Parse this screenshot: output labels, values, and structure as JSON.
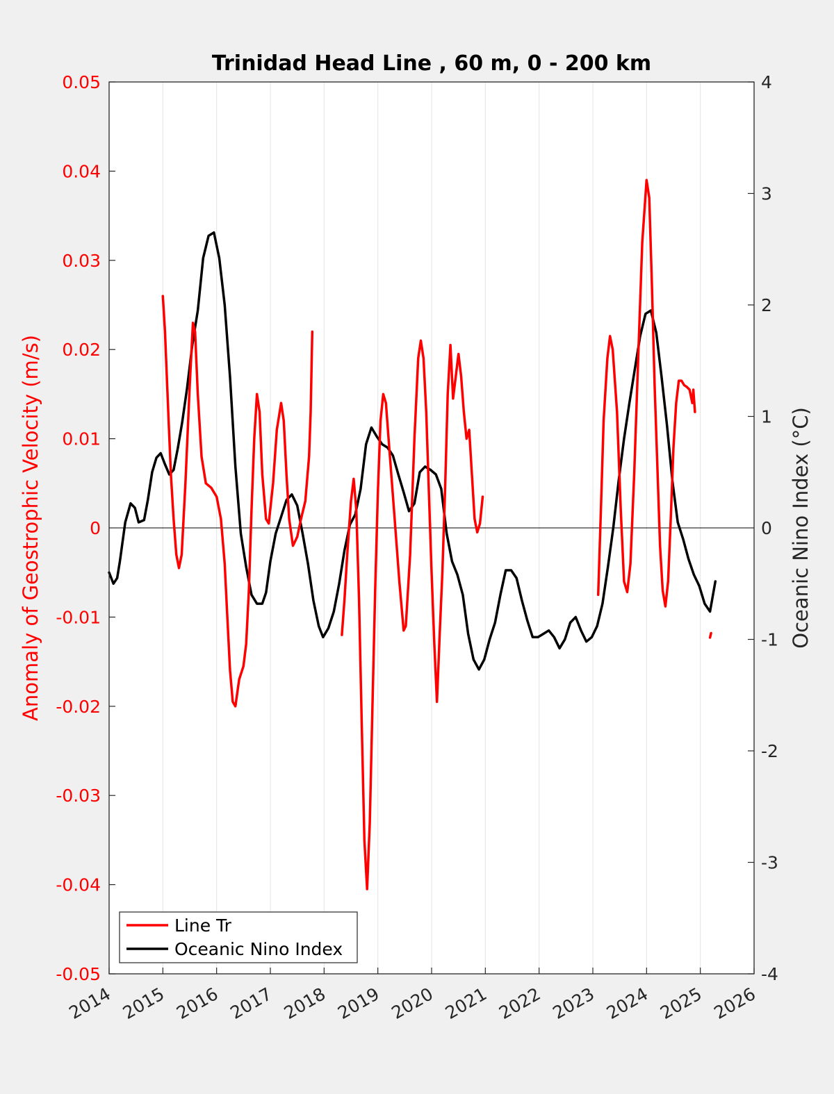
{
  "chart_data": {
    "type": "line",
    "title": "Trinidad Head Line , 60 m, 0 - 200 km",
    "ylabel_left": "Anomaly of Geostrophic Velocity (m/s)",
    "ylabel_right": "Oceanic Nino Index (°C)",
    "xlabel": "",
    "xlim": [
      2014,
      2026
    ],
    "ylim_left": [
      -0.05,
      0.05
    ],
    "ylim_right": [
      -4,
      4
    ],
    "x_ticks": [
      2014,
      2015,
      2016,
      2017,
      2018,
      2019,
      2020,
      2021,
      2022,
      2023,
      2024,
      2025,
      2026
    ],
    "y_ticks_left": [
      "0.05",
      "0.04",
      "0.03",
      "0.02",
      "0.01",
      "0",
      "-0.01",
      "-0.02",
      "-0.03",
      "-0.04",
      "-0.05"
    ],
    "y_ticks_right": [
      "4",
      "3",
      "2",
      "1",
      "0",
      "-1",
      "-2",
      "-3",
      "-4"
    ],
    "grid": "vertical",
    "legend_position": "bottom-left",
    "colors": {
      "line_tr": "#ff0000",
      "oni": "#000000",
      "left_axis": "#ff0000",
      "right_axis": "#262626"
    },
    "series": [
      {
        "name": "Line Tr",
        "axis": "left",
        "segments": [
          [
            [
              2015.0,
              0.026
            ],
            [
              2015.04,
              0.022
            ],
            [
              2015.1,
              0.013
            ],
            [
              2015.15,
              0.006
            ],
            [
              2015.2,
              0.001
            ],
            [
              2015.25,
              -0.003
            ],
            [
              2015.3,
              -0.0045
            ],
            [
              2015.35,
              -0.003
            ],
            [
              2015.42,
              0.005
            ],
            [
              2015.5,
              0.016
            ],
            [
              2015.56,
              0.023
            ],
            [
              2015.6,
              0.022
            ],
            [
              2015.65,
              0.015
            ],
            [
              2015.72,
              0.008
            ],
            [
              2015.8,
              0.005
            ],
            [
              2015.9,
              0.0045
            ],
            [
              2016.0,
              0.0035
            ],
            [
              2016.08,
              0.001
            ],
            [
              2016.15,
              -0.004
            ],
            [
              2016.2,
              -0.01
            ],
            [
              2016.25,
              -0.016
            ],
            [
              2016.3,
              -0.0195
            ],
            [
              2016.35,
              -0.02
            ],
            [
              2016.42,
              -0.017
            ],
            [
              2016.5,
              -0.0155
            ],
            [
              2016.55,
              -0.013
            ],
            [
              2016.6,
              -0.007
            ],
            [
              2016.65,
              0.002
            ],
            [
              2016.7,
              0.01
            ],
            [
              2016.75,
              0.015
            ],
            [
              2016.8,
              0.013
            ],
            [
              2016.85,
              0.006
            ],
            [
              2016.92,
              0.001
            ],
            [
              2016.97,
              0.0005
            ],
            [
              2017.05,
              0.005
            ],
            [
              2017.12,
              0.011
            ],
            [
              2017.2,
              0.014
            ],
            [
              2017.25,
              0.012
            ],
            [
              2017.3,
              0.006
            ],
            [
              2017.35,
              0.001
            ],
            [
              2017.42,
              -0.002
            ],
            [
              2017.5,
              -0.001
            ],
            [
              2017.57,
              0.001
            ],
            [
              2017.65,
              0.003
            ],
            [
              2017.72,
              0.008
            ],
            [
              2017.75,
              0.013
            ],
            [
              2017.78,
              0.022
            ]
          ],
          [
            [
              2018.33,
              -0.012
            ],
            [
              2018.38,
              -0.008
            ],
            [
              2018.43,
              -0.003
            ],
            [
              2018.5,
              0.003
            ],
            [
              2018.55,
              0.0055
            ],
            [
              2018.6,
              0.002
            ],
            [
              2018.65,
              -0.008
            ],
            [
              2018.7,
              -0.022
            ],
            [
              2018.75,
              -0.035
            ],
            [
              2018.8,
              -0.0405
            ],
            [
              2018.85,
              -0.033
            ],
            [
              2018.9,
              -0.02
            ],
            [
              2018.95,
              -0.007
            ],
            [
              2019.0,
              0.004
            ],
            [
              2019.05,
              0.012
            ],
            [
              2019.1,
              0.015
            ],
            [
              2019.15,
              0.014
            ],
            [
              2019.2,
              0.01
            ],
            [
              2019.3,
              0.002
            ],
            [
              2019.4,
              -0.006
            ],
            [
              2019.48,
              -0.0115
            ],
            [
              2019.52,
              -0.011
            ],
            [
              2019.6,
              -0.003
            ],
            [
              2019.68,
              0.01
            ],
            [
              2019.75,
              0.019
            ],
            [
              2019.8,
              0.021
            ],
            [
              2019.85,
              0.019
            ],
            [
              2019.9,
              0.013
            ],
            [
              2019.95,
              0.004
            ],
            [
              2020.0,
              -0.005
            ],
            [
              2020.05,
              -0.013
            ],
            [
              2020.1,
              -0.0195
            ],
            [
              2020.15,
              -0.012
            ],
            [
              2020.2,
              -0.005
            ],
            [
              2020.25,
              0.004
            ],
            [
              2020.3,
              0.015
            ],
            [
              2020.35,
              0.0205
            ],
            [
              2020.4,
              0.0145
            ],
            [
              2020.45,
              0.017
            ],
            [
              2020.5,
              0.0195
            ],
            [
              2020.55,
              0.017
            ],
            [
              2020.6,
              0.013
            ],
            [
              2020.65,
              0.01
            ],
            [
              2020.7,
              0.011
            ],
            [
              2020.75,
              0.006
            ],
            [
              2020.8,
              0.001
            ],
            [
              2020.85,
              -0.0005
            ],
            [
              2020.9,
              0.0005
            ],
            [
              2020.95,
              0.0035
            ]
          ],
          [
            [
              2023.1,
              -0.0075
            ],
            [
              2023.15,
              0.002
            ],
            [
              2023.2,
              0.012
            ],
            [
              2023.27,
              0.019
            ],
            [
              2023.32,
              0.0215
            ],
            [
              2023.37,
              0.02
            ],
            [
              2023.45,
              0.013
            ],
            [
              2023.52,
              0.002
            ],
            [
              2023.58,
              -0.006
            ],
            [
              2023.64,
              -0.0072
            ],
            [
              2023.7,
              -0.004
            ],
            [
              2023.77,
              0.006
            ],
            [
              2023.85,
              0.02
            ],
            [
              2023.92,
              0.032
            ],
            [
              2024.0,
              0.039
            ],
            [
              2024.05,
              0.037
            ],
            [
              2024.1,
              0.027
            ],
            [
              2024.15,
              0.016
            ],
            [
              2024.2,
              0.007
            ],
            [
              2024.25,
              -0.002
            ],
            [
              2024.3,
              -0.007
            ],
            [
              2024.35,
              -0.0088
            ],
            [
              2024.4,
              -0.006
            ],
            [
              2024.45,
              0.001
            ],
            [
              2024.5,
              0.009
            ],
            [
              2024.55,
              0.014
            ],
            [
              2024.6,
              0.0165
            ],
            [
              2024.65,
              0.0165
            ],
            [
              2024.7,
              0.016
            ],
            [
              2024.75,
              0.0158
            ],
            [
              2024.8,
              0.0155
            ],
            [
              2024.85,
              0.014
            ],
            [
              2024.87,
              0.0155
            ],
            [
              2024.9,
              0.013
            ]
          ],
          [
            [
              2025.18,
              -0.0123
            ],
            [
              2025.2,
              -0.0118
            ]
          ]
        ]
      },
      {
        "name": "Oceanic Nino Index",
        "axis": "right",
        "points": [
          [
            2014.0,
            -0.4
          ],
          [
            2014.08,
            -0.5
          ],
          [
            2014.15,
            -0.45
          ],
          [
            2014.2,
            -0.3
          ],
          [
            2014.3,
            0.05
          ],
          [
            2014.4,
            0.22
          ],
          [
            2014.48,
            0.18
          ],
          [
            2014.55,
            0.05
          ],
          [
            2014.65,
            0.07
          ],
          [
            2014.72,
            0.25
          ],
          [
            2014.8,
            0.5
          ],
          [
            2014.88,
            0.63
          ],
          [
            2014.96,
            0.67
          ],
          [
            2015.04,
            0.57
          ],
          [
            2015.12,
            0.48
          ],
          [
            2015.2,
            0.52
          ],
          [
            2015.28,
            0.72
          ],
          [
            2015.36,
            0.95
          ],
          [
            2015.45,
            1.25
          ],
          [
            2015.55,
            1.65
          ],
          [
            2015.65,
            1.95
          ],
          [
            2015.75,
            2.42
          ],
          [
            2015.85,
            2.62
          ],
          [
            2015.95,
            2.65
          ],
          [
            2016.05,
            2.42
          ],
          [
            2016.15,
            2.0
          ],
          [
            2016.25,
            1.35
          ],
          [
            2016.35,
            0.55
          ],
          [
            2016.45,
            -0.05
          ],
          [
            2016.55,
            -0.35
          ],
          [
            2016.65,
            -0.6
          ],
          [
            2016.75,
            -0.68
          ],
          [
            2016.85,
            -0.68
          ],
          [
            2016.92,
            -0.58
          ],
          [
            2017.0,
            -0.3
          ],
          [
            2017.1,
            -0.05
          ],
          [
            2017.2,
            0.1
          ],
          [
            2017.3,
            0.25
          ],
          [
            2017.4,
            0.3
          ],
          [
            2017.5,
            0.2
          ],
          [
            2017.6,
            -0.05
          ],
          [
            2017.7,
            -0.32
          ],
          [
            2017.8,
            -0.65
          ],
          [
            2017.9,
            -0.88
          ],
          [
            2017.98,
            -0.98
          ],
          [
            2018.08,
            -0.9
          ],
          [
            2018.18,
            -0.75
          ],
          [
            2018.28,
            -0.5
          ],
          [
            2018.38,
            -0.2
          ],
          [
            2018.48,
            0.03
          ],
          [
            2018.58,
            0.12
          ],
          [
            2018.68,
            0.35
          ],
          [
            2018.78,
            0.75
          ],
          [
            2018.88,
            0.9
          ],
          [
            2018.98,
            0.82
          ],
          [
            2019.08,
            0.75
          ],
          [
            2019.18,
            0.72
          ],
          [
            2019.28,
            0.65
          ],
          [
            2019.38,
            0.48
          ],
          [
            2019.48,
            0.32
          ],
          [
            2019.58,
            0.15
          ],
          [
            2019.68,
            0.22
          ],
          [
            2019.78,
            0.5
          ],
          [
            2019.88,
            0.55
          ],
          [
            2019.98,
            0.52
          ],
          [
            2020.08,
            0.48
          ],
          [
            2020.18,
            0.35
          ],
          [
            2020.28,
            -0.05
          ],
          [
            2020.38,
            -0.3
          ],
          [
            2020.48,
            -0.42
          ],
          [
            2020.58,
            -0.6
          ],
          [
            2020.68,
            -0.95
          ],
          [
            2020.78,
            -1.18
          ],
          [
            2020.88,
            -1.27
          ],
          [
            2020.98,
            -1.18
          ],
          [
            2021.08,
            -1.0
          ],
          [
            2021.18,
            -0.85
          ],
          [
            2021.28,
            -0.6
          ],
          [
            2021.38,
            -0.38
          ],
          [
            2021.48,
            -0.38
          ],
          [
            2021.58,
            -0.45
          ],
          [
            2021.68,
            -0.65
          ],
          [
            2021.78,
            -0.83
          ],
          [
            2021.88,
            -0.98
          ],
          [
            2021.98,
            -0.98
          ],
          [
            2022.08,
            -0.95
          ],
          [
            2022.18,
            -0.92
          ],
          [
            2022.28,
            -0.98
          ],
          [
            2022.38,
            -1.08
          ],
          [
            2022.48,
            -1.0
          ],
          [
            2022.58,
            -0.85
          ],
          [
            2022.68,
            -0.8
          ],
          [
            2022.78,
            -0.92
          ],
          [
            2022.88,
            -1.02
          ],
          [
            2022.98,
            -0.98
          ],
          [
            2023.08,
            -0.88
          ],
          [
            2023.18,
            -0.68
          ],
          [
            2023.28,
            -0.35
          ],
          [
            2023.38,
            0.0
          ],
          [
            2023.48,
            0.42
          ],
          [
            2023.58,
            0.8
          ],
          [
            2023.68,
            1.12
          ],
          [
            2023.78,
            1.42
          ],
          [
            2023.88,
            1.72
          ],
          [
            2023.98,
            1.92
          ],
          [
            2024.08,
            1.95
          ],
          [
            2024.18,
            1.75
          ],
          [
            2024.28,
            1.35
          ],
          [
            2024.38,
            0.92
          ],
          [
            2024.48,
            0.42
          ],
          [
            2024.58,
            0.05
          ],
          [
            2024.68,
            -0.1
          ],
          [
            2024.78,
            -0.28
          ],
          [
            2024.88,
            -0.42
          ],
          [
            2024.98,
            -0.52
          ],
          [
            2025.08,
            -0.68
          ],
          [
            2025.18,
            -0.75
          ],
          [
            2025.28,
            -0.48
          ]
        ]
      }
    ]
  }
}
